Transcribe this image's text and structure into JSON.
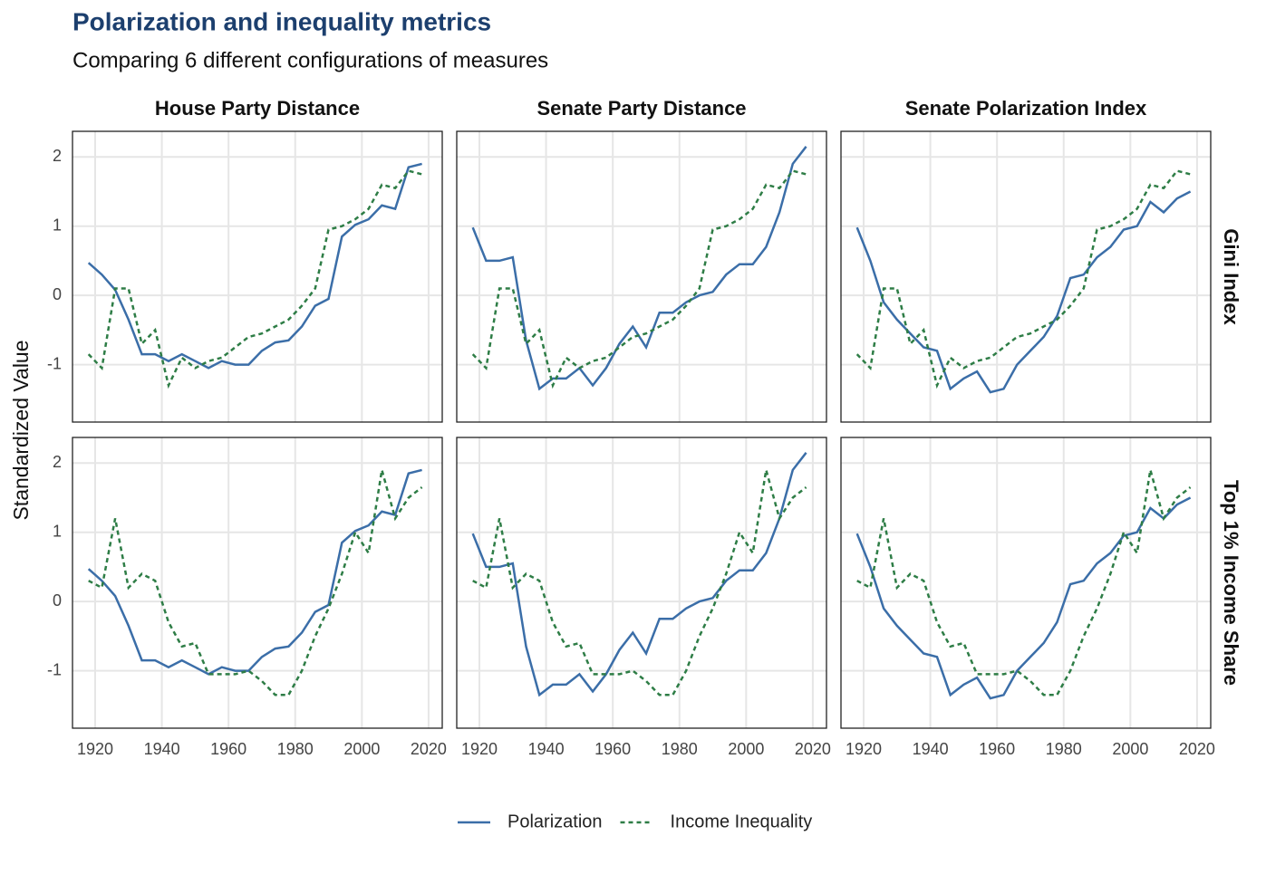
{
  "title": "Polarization and inequality metrics",
  "subtitle": "Comparing 6 different configurations of measures",
  "y_label": "Standardized Value",
  "columns": [
    "House Party Distance",
    "Senate Party Distance",
    "Senate Polarization Index"
  ],
  "rows": [
    "Gini Index",
    "Top 1% Income Share"
  ],
  "chart_data": [
    {
      "type": "line",
      "x": [
        1918,
        1922,
        1926,
        1930,
        1934,
        1938,
        1942,
        1946,
        1950,
        1954,
        1958,
        1962,
        1966,
        1970,
        1974,
        1978,
        1982,
        1986,
        1990,
        1994,
        1998,
        2002,
        2006,
        2010,
        2014,
        2018
      ],
      "series": [
        {
          "name": "Polarization",
          "color": "#3b6ea8",
          "dash": false,
          "values": [
            0.47,
            0.3,
            0.08,
            -0.35,
            -0.85,
            -0.85,
            -0.95,
            -0.85,
            -0.95,
            -1.05,
            -0.95,
            -1.0,
            -1.0,
            -0.8,
            -0.68,
            -0.65,
            -0.45,
            -0.15,
            -0.05,
            0.85,
            1.02,
            1.1,
            1.3,
            1.25,
            1.85,
            1.9
          ]
        },
        {
          "name": "Income Inequality",
          "color": "#2e7d46",
          "dash": true,
          "values": [
            -0.85,
            -1.05,
            0.1,
            0.1,
            -0.7,
            -0.5,
            -1.3,
            -0.9,
            -1.05,
            -0.95,
            -0.9,
            -0.75,
            -0.6,
            -0.55,
            -0.45,
            -0.35,
            -0.15,
            0.1,
            0.95,
            1.0,
            1.1,
            1.25,
            1.6,
            1.55,
            1.8,
            1.75
          ]
        }
      ],
      "xlim": [
        1913.2,
        2024.1
      ],
      "ylim": [
        -1.83,
        2.37
      ],
      "xticks": [
        1920,
        1940,
        1960,
        1980,
        2000,
        2020
      ],
      "yticks": [
        -1,
        0,
        1,
        2
      ],
      "grid": true
    },
    {
      "type": "line",
      "x": [
        1918,
        1922,
        1926,
        1930,
        1934,
        1938,
        1942,
        1946,
        1950,
        1954,
        1958,
        1962,
        1966,
        1970,
        1974,
        1978,
        1982,
        1986,
        1990,
        1994,
        1998,
        2002,
        2006,
        2010,
        2014,
        2018
      ],
      "series": [
        {
          "name": "Polarization",
          "color": "#3b6ea8",
          "dash": false,
          "values": [
            0.98,
            0.5,
            0.5,
            0.55,
            -0.65,
            -1.35,
            -1.2,
            -1.2,
            -1.05,
            -1.3,
            -1.05,
            -0.7,
            -0.45,
            -0.75,
            -0.25,
            -0.25,
            -0.1,
            0.0,
            0.05,
            0.3,
            0.45,
            0.45,
            0.7,
            1.2,
            1.9,
            2.15
          ]
        },
        {
          "name": "Income Inequality",
          "color": "#2e7d46",
          "dash": true,
          "values": [
            -0.85,
            -1.05,
            0.1,
            0.1,
            -0.7,
            -0.5,
            -1.3,
            -0.9,
            -1.05,
            -0.95,
            -0.9,
            -0.75,
            -0.6,
            -0.55,
            -0.45,
            -0.35,
            -0.15,
            0.1,
            0.95,
            1.0,
            1.1,
            1.25,
            1.6,
            1.55,
            1.8,
            1.75
          ]
        }
      ],
      "xlim": [
        1913.2,
        2024.1
      ],
      "ylim": [
        -1.83,
        2.37
      ],
      "xticks": [
        1920,
        1940,
        1960,
        1980,
        2000,
        2020
      ],
      "yticks": [
        -1,
        0,
        1,
        2
      ],
      "grid": true
    },
    {
      "type": "line",
      "x": [
        1918,
        1922,
        1926,
        1930,
        1934,
        1938,
        1942,
        1946,
        1950,
        1954,
        1958,
        1962,
        1966,
        1970,
        1974,
        1978,
        1982,
        1986,
        1990,
        1994,
        1998,
        2002,
        2006,
        2010,
        2014,
        2018
      ],
      "series": [
        {
          "name": "Polarization",
          "color": "#3b6ea8",
          "dash": false,
          "values": [
            0.98,
            0.5,
            -0.1,
            -0.35,
            -0.55,
            -0.75,
            -0.8,
            -1.35,
            -1.2,
            -1.1,
            -1.4,
            -1.35,
            -1.0,
            -0.8,
            -0.6,
            -0.3,
            0.25,
            0.3,
            0.55,
            0.7,
            0.95,
            1.0,
            1.35,
            1.2,
            1.4,
            1.5
          ]
        },
        {
          "name": "Income Inequality",
          "color": "#2e7d46",
          "dash": true,
          "values": [
            -0.85,
            -1.05,
            0.1,
            0.1,
            -0.7,
            -0.5,
            -1.3,
            -0.9,
            -1.05,
            -0.95,
            -0.9,
            -0.75,
            -0.6,
            -0.55,
            -0.45,
            -0.35,
            -0.15,
            0.1,
            0.95,
            1.0,
            1.1,
            1.25,
            1.6,
            1.55,
            1.8,
            1.75
          ]
        }
      ],
      "xlim": [
        1913.2,
        2024.1
      ],
      "ylim": [
        -1.83,
        2.37
      ],
      "xticks": [
        1920,
        1940,
        1960,
        1980,
        2000,
        2020
      ],
      "yticks": [
        -1,
        0,
        1,
        2
      ],
      "grid": true
    },
    {
      "type": "line",
      "x": [
        1918,
        1922,
        1926,
        1930,
        1934,
        1938,
        1942,
        1946,
        1950,
        1954,
        1958,
        1962,
        1966,
        1970,
        1974,
        1978,
        1982,
        1986,
        1990,
        1994,
        1998,
        2002,
        2006,
        2010,
        2014,
        2018
      ],
      "series": [
        {
          "name": "Polarization",
          "color": "#3b6ea8",
          "dash": false,
          "values": [
            0.47,
            0.3,
            0.08,
            -0.35,
            -0.85,
            -0.85,
            -0.95,
            -0.85,
            -0.95,
            -1.05,
            -0.95,
            -1.0,
            -1.0,
            -0.8,
            -0.68,
            -0.65,
            -0.45,
            -0.15,
            -0.05,
            0.85,
            1.02,
            1.1,
            1.3,
            1.25,
            1.85,
            1.9
          ]
        },
        {
          "name": "Income Inequality",
          "color": "#2e7d46",
          "dash": true,
          "values": [
            0.3,
            0.2,
            1.2,
            0.2,
            0.4,
            0.3,
            -0.3,
            -0.65,
            -0.6,
            -1.05,
            -1.05,
            -1.05,
            -1.0,
            -1.15,
            -1.35,
            -1.35,
            -1.0,
            -0.5,
            -0.1,
            0.4,
            1.0,
            0.7,
            1.9,
            1.2,
            1.5,
            1.65
          ]
        }
      ],
      "xlim": [
        1913.2,
        2024.1
      ],
      "ylim": [
        -1.83,
        2.37
      ],
      "xticks": [
        1920,
        1940,
        1960,
        1980,
        2000,
        2020
      ],
      "yticks": [
        -1,
        0,
        1,
        2
      ],
      "grid": true
    },
    {
      "type": "line",
      "x": [
        1918,
        1922,
        1926,
        1930,
        1934,
        1938,
        1942,
        1946,
        1950,
        1954,
        1958,
        1962,
        1966,
        1970,
        1974,
        1978,
        1982,
        1986,
        1990,
        1994,
        1998,
        2002,
        2006,
        2010,
        2014,
        2018
      ],
      "series": [
        {
          "name": "Polarization",
          "color": "#3b6ea8",
          "dash": false,
          "values": [
            0.98,
            0.5,
            0.5,
            0.55,
            -0.65,
            -1.35,
            -1.2,
            -1.2,
            -1.05,
            -1.3,
            -1.05,
            -0.7,
            -0.45,
            -0.75,
            -0.25,
            -0.25,
            -0.1,
            0.0,
            0.05,
            0.3,
            0.45,
            0.45,
            0.7,
            1.2,
            1.9,
            2.15
          ]
        },
        {
          "name": "Income Inequality",
          "color": "#2e7d46",
          "dash": true,
          "values": [
            0.3,
            0.2,
            1.2,
            0.2,
            0.4,
            0.3,
            -0.3,
            -0.65,
            -0.6,
            -1.05,
            -1.05,
            -1.05,
            -1.0,
            -1.15,
            -1.35,
            -1.35,
            -1.0,
            -0.5,
            -0.1,
            0.4,
            1.0,
            0.7,
            1.9,
            1.2,
            1.5,
            1.65
          ]
        }
      ],
      "xlim": [
        1913.2,
        2024.1
      ],
      "ylim": [
        -1.83,
        2.37
      ],
      "xticks": [
        1920,
        1940,
        1960,
        1980,
        2000,
        2020
      ],
      "yticks": [
        -1,
        0,
        1,
        2
      ],
      "grid": true
    },
    {
      "type": "line",
      "x": [
        1918,
        1922,
        1926,
        1930,
        1934,
        1938,
        1942,
        1946,
        1950,
        1954,
        1958,
        1962,
        1966,
        1970,
        1974,
        1978,
        1982,
        1986,
        1990,
        1994,
        1998,
        2002,
        2006,
        2010,
        2014,
        2018
      ],
      "series": [
        {
          "name": "Polarization",
          "color": "#3b6ea8",
          "dash": false,
          "values": [
            0.98,
            0.5,
            -0.1,
            -0.35,
            -0.55,
            -0.75,
            -0.8,
            -1.35,
            -1.2,
            -1.1,
            -1.4,
            -1.35,
            -1.0,
            -0.8,
            -0.6,
            -0.3,
            0.25,
            0.3,
            0.55,
            0.7,
            0.95,
            1.0,
            1.35,
            1.2,
            1.4,
            1.5
          ]
        },
        {
          "name": "Income Inequality",
          "color": "#2e7d46",
          "dash": true,
          "values": [
            0.3,
            0.2,
            1.2,
            0.2,
            0.4,
            0.3,
            -0.3,
            -0.65,
            -0.6,
            -1.05,
            -1.05,
            -1.05,
            -1.0,
            -1.15,
            -1.35,
            -1.35,
            -1.0,
            -0.5,
            -0.1,
            0.4,
            1.0,
            0.7,
            1.9,
            1.2,
            1.5,
            1.65
          ]
        }
      ],
      "xlim": [
        1913.2,
        2024.1
      ],
      "ylim": [
        -1.83,
        2.37
      ],
      "xticks": [
        1920,
        1940,
        1960,
        1980,
        2000,
        2020
      ],
      "yticks": [
        -1,
        0,
        1,
        2
      ],
      "grid": true
    }
  ]
}
